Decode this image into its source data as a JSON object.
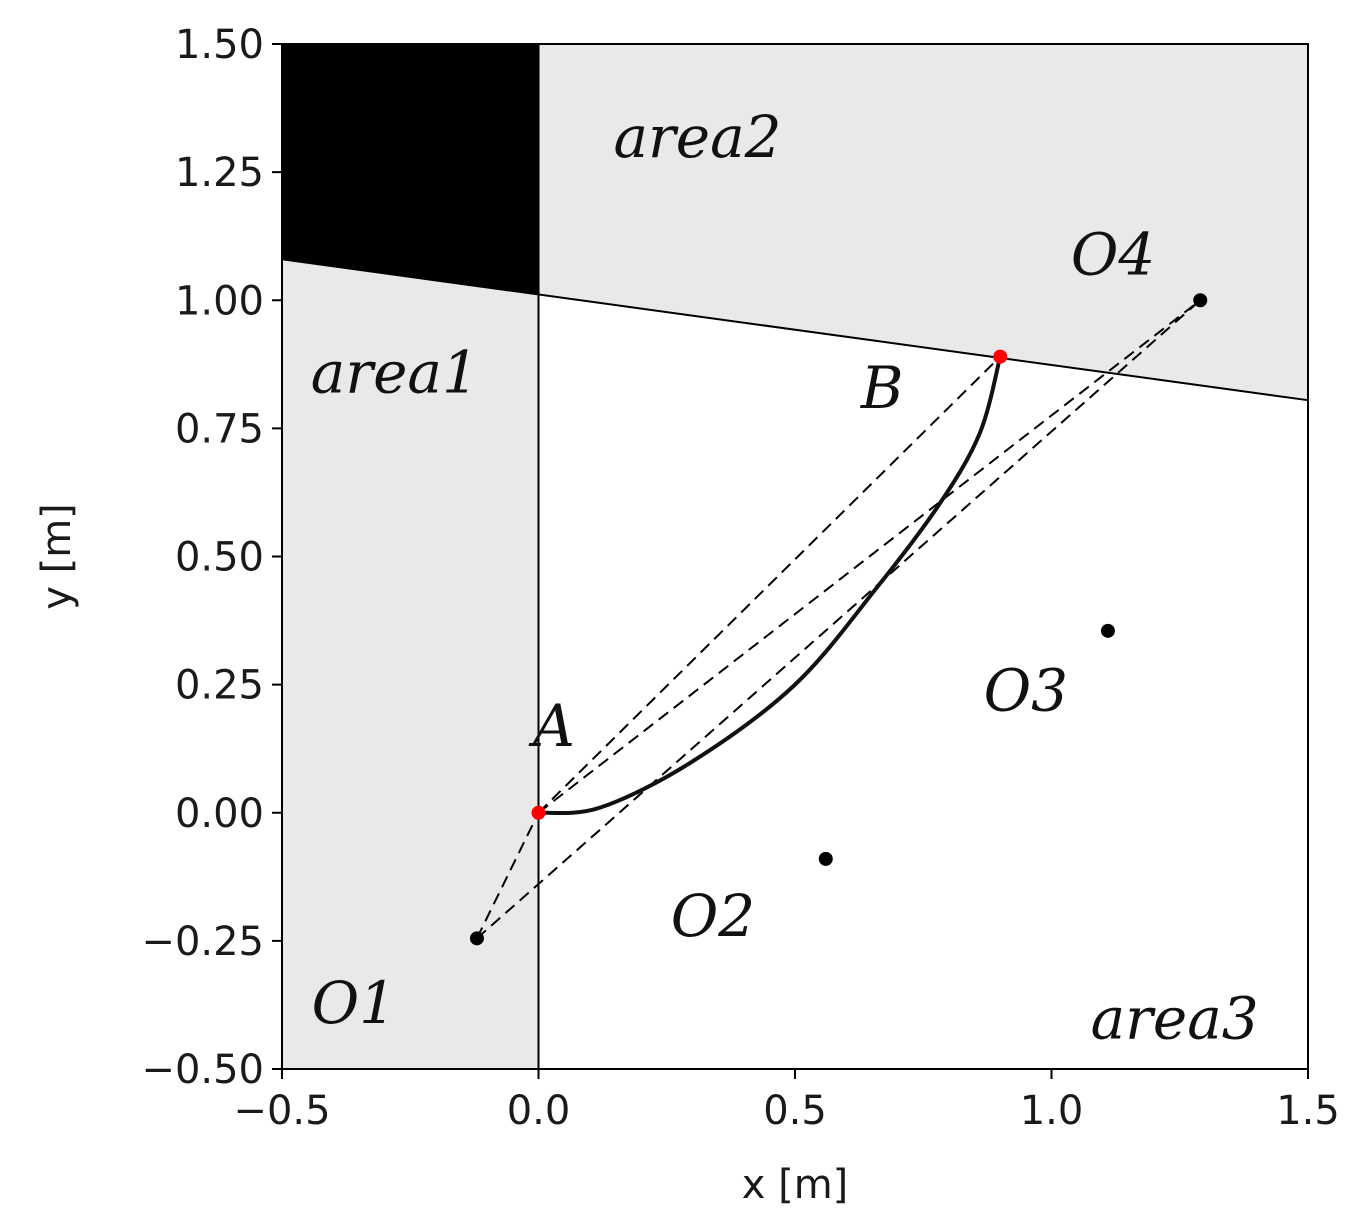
{
  "chart_data": {
    "type": "scatter",
    "xlabel": "x [m]",
    "ylabel": "y [m]",
    "xlim": [
      -0.5,
      1.5
    ],
    "ylim": [
      -0.5,
      1.5
    ],
    "xticks": [
      -0.5,
      0.0,
      0.5,
      1.0,
      1.5
    ],
    "xtick_labels": [
      "−0.5",
      "0.0",
      "0.5",
      "1.0",
      "1.5"
    ],
    "yticks": [
      -0.5,
      -0.25,
      0.0,
      0.25,
      0.5,
      0.75,
      1.0,
      1.25,
      1.5
    ],
    "ytick_labels": [
      "−0.50",
      "−0.25",
      "0.00",
      "0.25",
      "0.50",
      "0.75",
      "1.00",
      "1.25",
      "1.50"
    ],
    "grid": false,
    "regions": [
      {
        "label": "area1",
        "color": "#e9e9e9",
        "polygon": [
          [
            -0.5,
            -0.5
          ],
          [
            0.0,
            -0.5
          ],
          [
            0.0,
            1.01
          ],
          [
            -0.5,
            1.08
          ]
        ],
        "label_at": [
          -0.28,
          0.82
        ]
      },
      {
        "label": "area2",
        "color": "#e9e9e9",
        "polygon": [
          [
            0.0,
            1.01
          ],
          [
            1.5,
            0.805
          ],
          [
            1.5,
            1.5
          ],
          [
            0.0,
            1.5
          ]
        ],
        "label_at": [
          0.31,
          1.28
        ]
      },
      {
        "label": "area3",
        "color": "#ffffff",
        "polygon": [
          [
            0.0,
            -0.5
          ],
          [
            1.5,
            -0.5
          ],
          [
            1.5,
            0.805
          ],
          [
            0.0,
            1.01
          ]
        ],
        "label_at": [
          1.24,
          -0.44
        ]
      },
      {
        "label": "",
        "color": "#000000",
        "polygon": [
          [
            -0.5,
            1.08
          ],
          [
            0.0,
            1.01
          ],
          [
            0.0,
            1.5
          ],
          [
            -0.5,
            1.5
          ]
        ]
      }
    ],
    "boundaries": [
      [
        [
          -0.5,
          1.08
        ],
        [
          1.5,
          0.805
        ]
      ],
      [
        [
          0.0,
          -0.5
        ],
        [
          0.0,
          1.5
        ]
      ]
    ],
    "points": [
      {
        "label": "A",
        "x": 0.0,
        "y": 0.0,
        "color": "#ff0000",
        "label_at": [
          0.03,
          0.13
        ]
      },
      {
        "label": "B",
        "x": 0.9,
        "y": 0.89,
        "color": "#ff0000",
        "label_at": [
          0.67,
          0.79
        ]
      },
      {
        "label": "O1",
        "x": -0.12,
        "y": -0.245,
        "color": "#000000",
        "label_at": [
          -0.36,
          -0.41
        ]
      },
      {
        "label": "O2",
        "x": 0.56,
        "y": -0.09,
        "color": "#000000",
        "label_at": [
          0.34,
          -0.24
        ]
      },
      {
        "label": "O3",
        "x": 1.11,
        "y": 0.355,
        "color": "#000000",
        "label_at": [
          0.95,
          0.2
        ]
      },
      {
        "label": "O4",
        "x": 1.29,
        "y": 1.0,
        "color": "#000000",
        "label_at": [
          1.12,
          1.05
        ]
      }
    ],
    "dashed_lines": [
      [
        [
          -0.12,
          -0.245
        ],
        [
          0.0,
          0.0
        ]
      ],
      [
        [
          -0.12,
          -0.245
        ],
        [
          1.29,
          1.0
        ]
      ],
      [
        [
          0.0,
          0.0
        ],
        [
          1.29,
          1.0
        ]
      ],
      [
        [
          0.0,
          0.0
        ],
        [
          0.9,
          0.89
        ]
      ]
    ],
    "path": {
      "description_points": [
        [
          0.0,
          0.0
        ],
        [
          0.12,
          0.01
        ],
        [
          0.3,
          0.1
        ],
        [
          0.5,
          0.25
        ],
        [
          0.66,
          0.44
        ],
        [
          0.78,
          0.6
        ],
        [
          0.86,
          0.74
        ],
        [
          0.9,
          0.89
        ]
      ]
    }
  }
}
